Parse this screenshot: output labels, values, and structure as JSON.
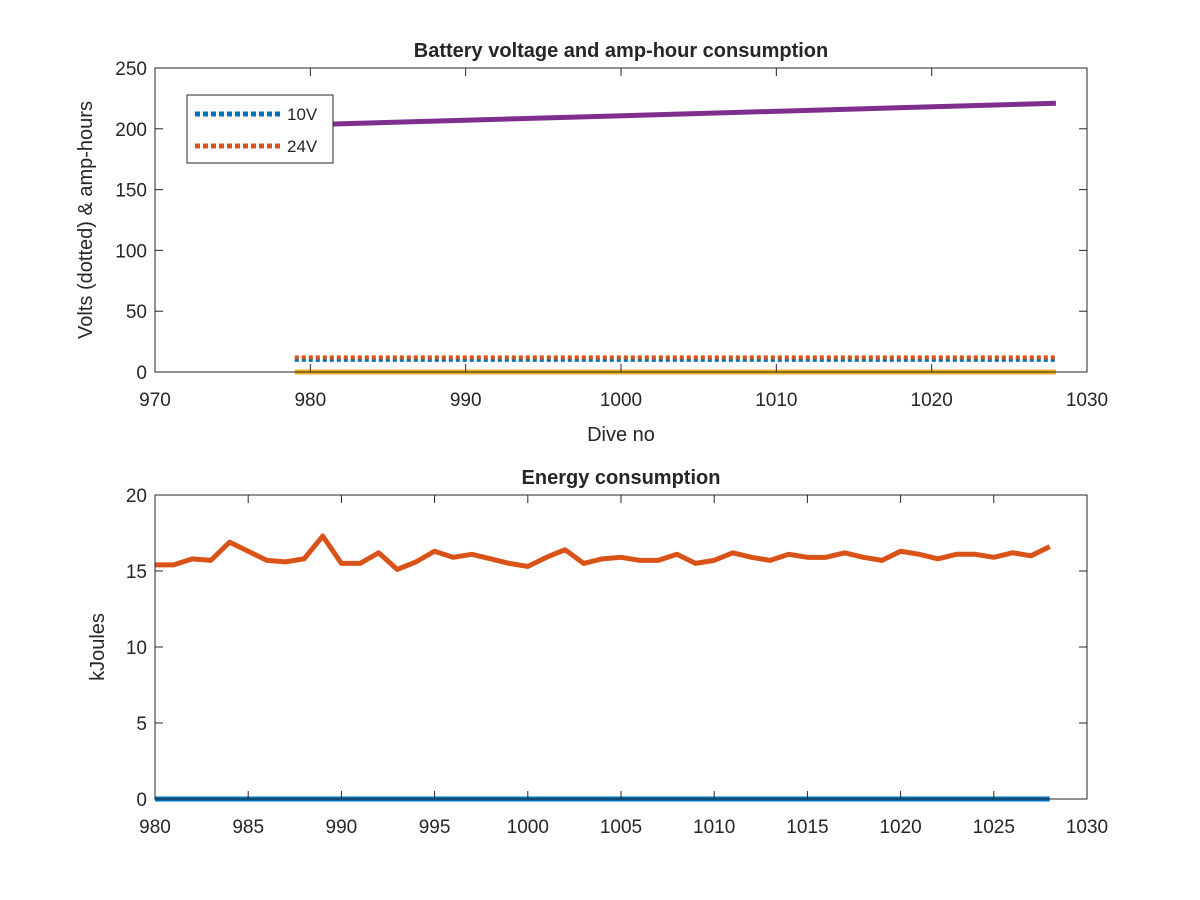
{
  "colors": {
    "blue": "#0072BD",
    "orange": "#D95319",
    "yellow": "#EDB120",
    "purple": "#7E2F8E",
    "axis": "#262626"
  },
  "chart_data": [
    {
      "type": "line",
      "title": "Battery voltage and amp-hour consumption",
      "xlabel": "Dive no",
      "ylabel": "Volts (dotted) & amp-hours",
      "xlim": [
        970,
        1030
      ],
      "ylim": [
        0,
        250
      ],
      "xticks": [
        "970",
        "980",
        "990",
        "1000",
        "1010",
        "1020",
        "1030"
      ],
      "yticks": [
        "0",
        "50",
        "100",
        "150",
        "200",
        "250"
      ],
      "grid": false,
      "legend_position": "top-left",
      "series": [
        {
          "name": "10V",
          "style": "dotted",
          "color": "#0072BD",
          "x": [
            979,
            1028
          ],
          "y": [
            10,
            10
          ]
        },
        {
          "name": "24V",
          "style": "dotted",
          "color": "#D95319",
          "x": [
            979,
            1028
          ],
          "y": [
            12,
            12
          ]
        },
        {
          "style": "solid",
          "color": "#EDB120",
          "x": [
            979,
            1028
          ],
          "y": [
            0,
            0
          ]
        },
        {
          "style": "solid",
          "color": "#7E2F8E",
          "x": [
            979,
            1028
          ],
          "y": [
            203,
            221
          ]
        }
      ]
    },
    {
      "type": "line",
      "title": "Energy consumption",
      "xlabel": "",
      "ylabel": "kJoules",
      "xlim": [
        980,
        1030
      ],
      "ylim": [
        0,
        20
      ],
      "xticks": [
        "980",
        "985",
        "990",
        "995",
        "1000",
        "1005",
        "1010",
        "1015",
        "1020",
        "1025",
        "1030"
      ],
      "yticks": [
        "0",
        "5",
        "10",
        "15",
        "20"
      ],
      "grid": false,
      "series": [
        {
          "style": "solid",
          "color": "#D95319",
          "x": [
            980,
            981,
            982,
            983,
            984,
            985,
            986,
            987,
            988,
            989,
            990,
            991,
            992,
            993,
            994,
            995,
            996,
            997,
            998,
            999,
            1000,
            1001,
            1002,
            1003,
            1004,
            1005,
            1006,
            1007,
            1008,
            1009,
            1010,
            1011,
            1012,
            1013,
            1014,
            1015,
            1016,
            1017,
            1018,
            1019,
            1020,
            1021,
            1022,
            1023,
            1024,
            1025,
            1026,
            1027,
            1028
          ],
          "y": [
            15.4,
            15.4,
            15.8,
            15.7,
            16.9,
            16.3,
            15.7,
            15.6,
            15.8,
            17.3,
            15.5,
            15.5,
            16.2,
            15.1,
            15.6,
            16.3,
            15.9,
            16.1,
            15.8,
            15.5,
            15.3,
            15.9,
            16.4,
            15.5,
            15.8,
            15.9,
            15.7,
            15.7,
            16.1,
            15.5,
            15.7,
            16.2,
            15.9,
            15.7,
            16.1,
            15.9,
            15.9,
            16.2,
            15.9,
            15.7,
            16.3,
            16.1,
            15.8,
            16.1,
            16.1,
            15.9,
            16.2,
            16.0,
            16.6
          ]
        },
        {
          "style": "solid",
          "color": "#0072BD",
          "x": [
            980,
            1028
          ],
          "y": [
            0,
            0
          ]
        }
      ]
    }
  ]
}
